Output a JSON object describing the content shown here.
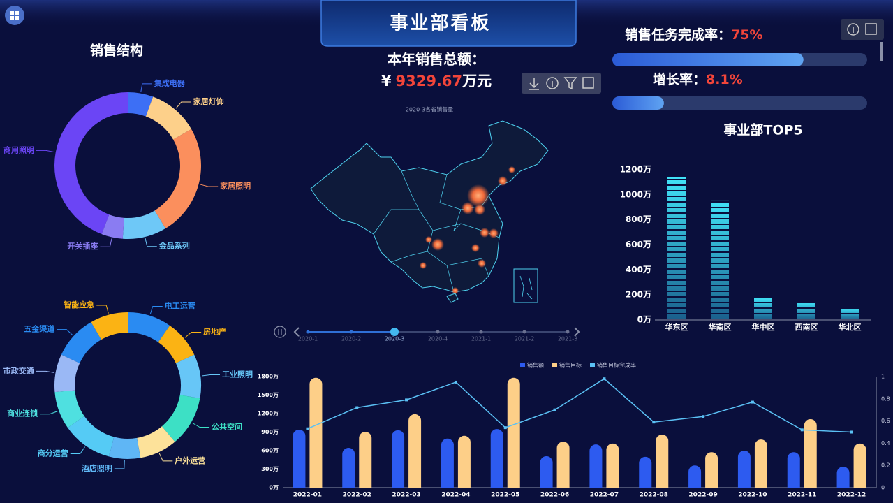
{
  "header": {
    "title": "事业部看板"
  },
  "total_sales": {
    "label": "本年销售总额：",
    "currency": "¥",
    "value": 9329.67,
    "unit": "万元"
  },
  "kpis": [
    {
      "label": "销售任务完成率：",
      "value": 75,
      "value_label": "75%",
      "xlim": [
        0,
        100
      ]
    },
    {
      "label": "增长率：",
      "value": 8.1,
      "value_label": "8.1%",
      "xlim": [
        0,
        40
      ]
    }
  ],
  "map": {
    "title": "2020-3各省销售量",
    "timeline": [
      "2020-1",
      "2020-2",
      "2020-3",
      "2020-4",
      "2021-1",
      "2021-2",
      "2021-3"
    ],
    "selected_index": 2
  },
  "chart_data": [
    {
      "type": "donut",
      "title": "销售结构",
      "categories": [
        "集成电器",
        "家居灯饰",
        "家居照明",
        "金品系列",
        "开关插座",
        "商用照明"
      ],
      "values": [
        5.6,
        11.1,
        24.7,
        9.7,
        4.7,
        44.2
      ],
      "colors": [
        "#3d6ff5",
        "#fdd08a",
        "#fb8f5d",
        "#6ec8f7",
        "#8a7cf2",
        "#6b45f5"
      ]
    },
    {
      "type": "donut",
      "categories": [
        "电工运营",
        "房地产",
        "工业照明",
        "公共空间",
        "户外运营",
        "酒店照明",
        "商分运营",
        "商业连锁",
        "市政交通",
        "五金渠道",
        "智能应急"
      ],
      "values": [
        35,
        30,
        35,
        40,
        30,
        25,
        40,
        30,
        30,
        35,
        30
      ],
      "colors": [
        "#2a8bf2",
        "#fbb314",
        "#67c6f7",
        "#3de0c5",
        "#fde29a",
        "#5fb6f5",
        "#55cbf5",
        "#4fe0e0",
        "#9ab8f5",
        "#2a8bf2",
        "#fbb314"
      ]
    },
    {
      "type": "bar",
      "title": "事业部TOP5",
      "categories": [
        "华东区",
        "华南区",
        "华中区",
        "西南区",
        "华北区"
      ],
      "values": [
        1140,
        955,
        180,
        145,
        95
      ],
      "ylim": [
        0,
        1200
      ],
      "yticks": [
        {
          "value": 0,
          "label": "0万"
        },
        {
          "value": 200,
          "label": "200万"
        },
        {
          "value": 400,
          "label": "400万"
        },
        {
          "value": 600,
          "label": "600万"
        },
        {
          "value": 800,
          "label": "800万"
        },
        {
          "value": 1000,
          "label": "1000万"
        },
        {
          "value": 1200,
          "label": "1200万"
        }
      ],
      "grid": false
    },
    {
      "type": "combo",
      "categories": [
        "2022-01",
        "2022-02",
        "2022-03",
        "2022-04",
        "2022-05",
        "2022-06",
        "2022-07",
        "2022-08",
        "2022-09",
        "2022-10",
        "2022-11",
        "2022-12"
      ],
      "series": [
        {
          "name": "销售额",
          "color": "#2d5bf0",
          "values": [
            940,
            645,
            930,
            795,
            950,
            510,
            700,
            500,
            360,
            600,
            575,
            340
          ]
        },
        {
          "name": "销售目标",
          "color": "#fdcf88",
          "values": [
            1780,
            905,
            1190,
            840,
            1780,
            745,
            715,
            860,
            575,
            780,
            1110,
            715
          ]
        },
        {
          "name": "销售目标完成率",
          "color": "#5bc1f5",
          "type": "line",
          "axis": "y2",
          "values": [
            0.53,
            0.72,
            0.79,
            0.95,
            0.54,
            0.7,
            0.98,
            0.59,
            0.64,
            0.77,
            0.52,
            0.5
          ]
        }
      ],
      "ylim": [
        0,
        1800
      ],
      "yticks": [
        {
          "value": 0,
          "label": "0万"
        },
        {
          "value": 300,
          "label": "300万"
        },
        {
          "value": 600,
          "label": "600万"
        },
        {
          "value": 900,
          "label": "900万"
        },
        {
          "value": 1200,
          "label": "1200万"
        },
        {
          "value": 1500,
          "label": "1500万"
        },
        {
          "value": 1800,
          "label": "1800万"
        }
      ],
      "y2lim": [
        0,
        1
      ],
      "y2ticks": [
        0,
        0.2,
        0.4,
        0.6,
        0.8,
        1
      ],
      "grid": false
    }
  ]
}
